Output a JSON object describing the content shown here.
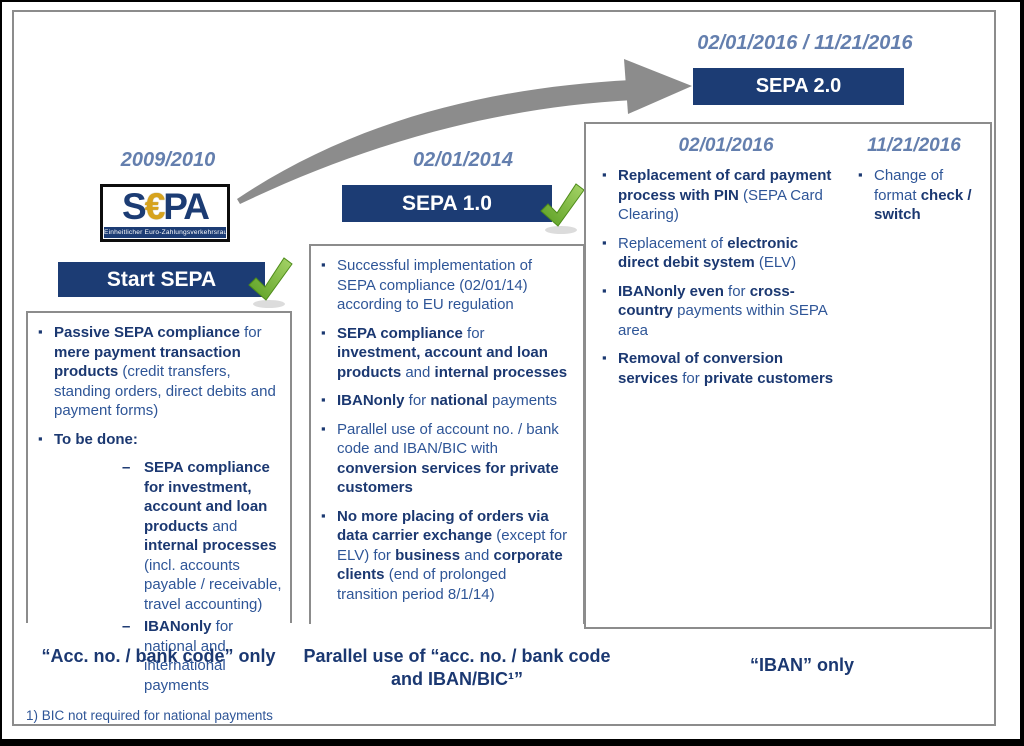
{
  "colors": {
    "navy_bar": "#1c3c74",
    "text_dark": "#1b3871",
    "text_medium": "#2e5597",
    "date_blue": "#647fae",
    "arrow_gray": "#8c8c8c",
    "border_gray": "#8c8c8c",
    "check_green": "#6fb32a",
    "euro_gold": "#d7a31d"
  },
  "sepa20": {
    "dates": "02/01/2016 / 11/21/2016",
    "banner": "SEPA 2.0"
  },
  "phase1": {
    "date": "2009/2010",
    "logo": {
      "s": "S",
      "euro": "€",
      "pa": "PA",
      "subtitle": "Einheitlicher Euro-Zahlungsverkehrsraum"
    },
    "banner": "Start SEPA",
    "items": [
      {
        "lvl": 0,
        "seg": [
          {
            "t": "Passive SEPA compliance",
            "b": true
          },
          {
            "t": " for ",
            "b": false
          },
          {
            "t": "mere payment transaction products",
            "b": true
          },
          {
            "t": " (credit transfers, standing orders, direct debits and payment forms)",
            "b": false
          }
        ]
      },
      {
        "lvl": 0,
        "seg": [
          {
            "t": "To be done:",
            "b": true
          }
        ]
      },
      {
        "lvl": 1,
        "seg": [
          {
            "t": "SEPA compliance for investment, account and loan products",
            "b": true
          },
          {
            "t": " and ",
            "b": false
          },
          {
            "t": "internal processes",
            "b": true
          },
          {
            "t": " (incl. accounts payable / receivable, travel accounting)",
            "b": false
          }
        ]
      },
      {
        "lvl": 1,
        "seg": [
          {
            "t": "IBANonly",
            "b": true
          },
          {
            "t": " for national and international payments",
            "b": false
          }
        ]
      }
    ],
    "summary": "“Acc. no. / bank code” only"
  },
  "phase2": {
    "date": "02/01/2014",
    "banner": "SEPA 1.0",
    "items": [
      {
        "lvl": 0,
        "seg": [
          {
            "t": "Successful implementation of SEPA compliance (02/01/14) according to EU regulation",
            "b": false
          }
        ]
      },
      {
        "lvl": 0,
        "seg": [
          {
            "t": "SEPA compliance",
            "b": true
          },
          {
            "t": " for ",
            "b": false
          },
          {
            "t": "investment, account and loan products",
            "b": true
          },
          {
            "t": " and ",
            "b": false
          },
          {
            "t": "internal processes",
            "b": true
          }
        ]
      },
      {
        "lvl": 0,
        "seg": [
          {
            "t": "IBANonly",
            "b": true
          },
          {
            "t": " for ",
            "b": false
          },
          {
            "t": "national",
            "b": true
          },
          {
            "t": " payments",
            "b": false
          }
        ]
      },
      {
        "lvl": 0,
        "seg": [
          {
            "t": "Parallel use of account no. / bank code and IBAN/BIC with ",
            "b": false
          },
          {
            "t": "conversion services for private customers",
            "b": true
          }
        ]
      },
      {
        "lvl": 0,
        "seg": [
          {
            "t": "No more placing of orders via data carrier exchange",
            "b": true
          },
          {
            "t": " (except for ELV) for ",
            "b": false
          },
          {
            "t": "business",
            "b": true
          },
          {
            "t": " and ",
            "b": false
          },
          {
            "t": "corporate clients",
            "b": true
          },
          {
            "t": " (end of prolonged transition period 8/1/14)",
            "b": false
          }
        ]
      }
    ],
    "summary": "Parallel use of “acc. no. / bank code and IBAN/BIC¹”"
  },
  "phase3": {
    "col_a": {
      "date": "02/01/2016",
      "items": [
        {
          "lvl": 0,
          "seg": [
            {
              "t": "Replacement of card payment process with PIN",
              "b": true
            },
            {
              "t": " (SEPA Card Clearing)",
              "b": false
            }
          ]
        },
        {
          "lvl": 0,
          "seg": [
            {
              "t": "Replacement of ",
              "b": false
            },
            {
              "t": "electronic direct debit system",
              "b": true
            },
            {
              "t": " (ELV)",
              "b": false
            }
          ]
        },
        {
          "lvl": 0,
          "seg": [
            {
              "t": "IBANonly even",
              "b": true
            },
            {
              "t": " for ",
              "b": false
            },
            {
              "t": "cross-country",
              "b": true
            },
            {
              "t": " payments within SEPA area",
              "b": false
            }
          ]
        },
        {
          "lvl": 0,
          "seg": [
            {
              "t": "Removal of conversion services",
              "b": true
            },
            {
              "t": " for ",
              "b": false
            },
            {
              "t": "private customers",
              "b": true
            }
          ]
        }
      ]
    },
    "col_b": {
      "date": "11/21/2016",
      "items": [
        {
          "lvl": 0,
          "seg": [
            {
              "t": "Change of format ",
              "b": false
            },
            {
              "t": "check / switch",
              "b": true
            }
          ]
        }
      ]
    },
    "summary": "“IBAN” only"
  },
  "footnote": "1) BIC not required for national payments"
}
